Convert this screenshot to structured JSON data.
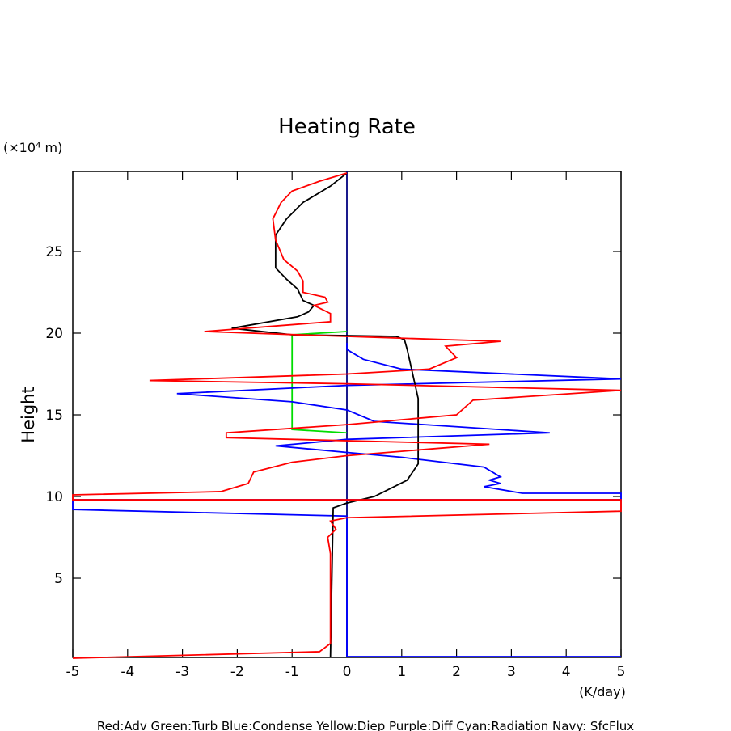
{
  "chart_data": {
    "type": "line",
    "title": "Heating Rate",
    "y_label": "Height",
    "y_unit": "(×10⁴ m)",
    "x_unit": "(K/day)",
    "note": "Red:Adv  Green:Turb  Blue:Condense  Yellow:Diep  Purple:Diff  Cyan:Radiation  Navy: SfcFlux",
    "xlim": [
      -5,
      5
    ],
    "xticks": [
      -5,
      -4,
      -3,
      -2,
      -1,
      0,
      1,
      2,
      3,
      4,
      5
    ],
    "ylim": [
      0.15,
      29.9
    ],
    "yticks": [
      5,
      10,
      15,
      20,
      25
    ],
    "series": [
      {
        "color": "#000080",
        "x": [
          0,
          0
        ],
        "values": [
          0.15,
          29.9
        ]
      },
      {
        "color": "#00dd00",
        "x": [
          0,
          -1,
          -1,
          0
        ],
        "values": [
          20.1,
          19.9,
          14.1,
          13.9
        ]
      },
      {
        "color": "#0000ff",
        "x": [
          0,
          0,
          0.3,
          1,
          5,
          0,
          -3.1,
          -1,
          0,
          0.5,
          3.7,
          0,
          -1.3,
          0,
          1,
          2.5,
          2.8,
          2.6,
          2.8,
          2.5,
          3.2,
          5,
          5,
          -5,
          -5,
          0,
          0,
          5
        ],
        "values": [
          19.4,
          19.0,
          18.4,
          17.8,
          17.2,
          16.8,
          16.3,
          15.8,
          15.3,
          14.6,
          13.9,
          13.5,
          13.1,
          12.7,
          12.4,
          11.8,
          11.2,
          11.0,
          10.8,
          10.6,
          10.2,
          10.2,
          9.8,
          9.8,
          9.2,
          8.8,
          0.2,
          0.2
        ]
      },
      {
        "color": "#000000",
        "x": [
          -0.3,
          -0.25,
          0,
          0.5,
          1.1,
          1.3,
          1.3,
          1.3,
          1.2,
          1.1,
          1.05,
          0.9,
          -1,
          -2.1,
          -0.9,
          -0.7,
          -0.6,
          -0.8,
          -0.9,
          -1.1,
          -1.3,
          -1.3,
          -1.3,
          -1.1,
          -0.8,
          -0.3,
          0
        ],
        "values": [
          0.2,
          9.3,
          9.6,
          10,
          11,
          12,
          14,
          16,
          17.5,
          19.0,
          19.6,
          19.8,
          19.9,
          20.3,
          21,
          21.3,
          21.7,
          22.0,
          22.7,
          23.3,
          24,
          25,
          26,
          27,
          28,
          29,
          29.8
        ]
      },
      {
        "color": "#ff0000",
        "x": [
          0,
          -0.5,
          -1,
          -1.2,
          -1.35,
          -1.3,
          -1.15,
          -0.9,
          -0.8,
          -0.8,
          -0.4,
          -0.35,
          -0.6,
          -0.3,
          -0.3,
          -2.6,
          0,
          2.8,
          1.8,
          2,
          1.5,
          0,
          -3.6,
          0,
          5,
          2.3,
          2,
          0,
          -2.2,
          -2.2,
          2.6,
          0,
          -1,
          -1.7,
          -1.8,
          -2.3,
          -5,
          -5,
          5,
          5,
          0,
          -0.3,
          -0.2,
          -0.35,
          -0.3,
          -0.3,
          -0.5,
          -5
        ],
        "values": [
          29.8,
          29.3,
          28.7,
          28,
          27,
          25.7,
          24.5,
          23.8,
          23.2,
          22.5,
          22.2,
          21.9,
          21.7,
          21.2,
          20.7,
          20.1,
          19.8,
          19.5,
          19.2,
          18.5,
          17.8,
          17.5,
          17.1,
          16.9,
          16.5,
          15.9,
          15.0,
          14.4,
          13.9,
          13.6,
          13.2,
          12.5,
          12.1,
          11.5,
          10.8,
          10.3,
          10.1,
          9.8,
          9.8,
          9.1,
          8.7,
          8.5,
          8.0,
          7.5,
          6.5,
          1.0,
          0.5,
          0.1
        ]
      }
    ]
  }
}
